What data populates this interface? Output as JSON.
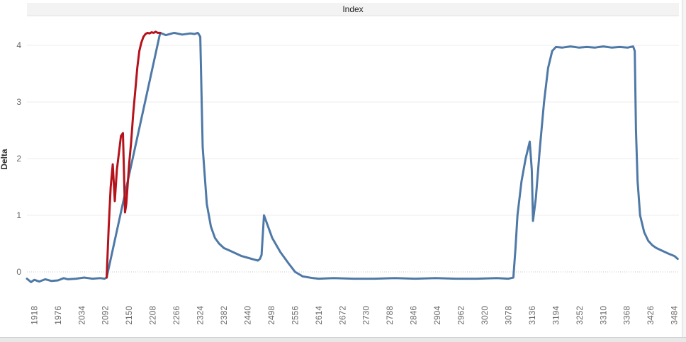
{
  "header": {
    "title": "Index"
  },
  "chart_data": {
    "type": "line",
    "title": "Index",
    "xlabel": "",
    "ylabel": "Delta",
    "xlim": [
      1900,
      3495
    ],
    "ylim": [
      -0.55,
      4.5
    ],
    "grid": true,
    "y_ticks": [
      0,
      1,
      2,
      3,
      4
    ],
    "x_ticks": [
      1918,
      1976,
      2034,
      2092,
      2150,
      2208,
      2266,
      2324,
      2382,
      2440,
      2498,
      2556,
      2614,
      2672,
      2730,
      2788,
      2846,
      2904,
      2962,
      3020,
      3078,
      3136,
      3194,
      3252,
      3310,
      3368,
      3426,
      3484
    ],
    "colors": {
      "primary": "#4e79a7",
      "highlight": "#b5121b",
      "grid": "#ececec",
      "zero_line": "#c8c8c8"
    },
    "series": [
      {
        "segment": "primary",
        "color": "#4e79a7",
        "x": [
          1900,
          1910,
          1918,
          1930,
          1945,
          1960,
          1976,
          1990,
          2000,
          2020,
          2040,
          2060,
          2080,
          2090,
          2095,
          2226,
          2240,
          2260,
          2280,
          2300,
          2310,
          2318,
          2320,
          2324,
          2330,
          2340,
          2350,
          2360,
          2370,
          2382,
          2395,
          2410,
          2425,
          2440,
          2455,
          2465,
          2470,
          2474,
          2480,
          2490,
          2500,
          2520,
          2540,
          2556,
          2575,
          2600,
          2614,
          2650,
          2700,
          2750,
          2800,
          2850,
          2900,
          2950,
          3000,
          3050,
          3078,
          3090,
          3095,
          3100,
          3110,
          3120,
          3130,
          3135,
          3138,
          3145,
          3155,
          3165,
          3175,
          3185,
          3194,
          3210,
          3230,
          3250,
          3270,
          3290,
          3310,
          3330,
          3350,
          3370,
          3383,
          3387,
          3390,
          3394,
          3400,
          3410,
          3420,
          3430,
          3440,
          3455,
          3470,
          3484,
          3492
        ],
        "y": [
          -0.12,
          -0.18,
          -0.14,
          -0.17,
          -0.13,
          -0.16,
          -0.15,
          -0.11,
          -0.13,
          -0.12,
          -0.1,
          -0.12,
          -0.11,
          -0.12,
          -0.1,
          4.22,
          4.18,
          4.22,
          4.19,
          4.21,
          4.2,
          4.22,
          4.2,
          4.15,
          2.2,
          1.2,
          0.8,
          0.6,
          0.5,
          0.42,
          0.38,
          0.33,
          0.28,
          0.25,
          0.22,
          0.2,
          0.23,
          0.3,
          1.0,
          0.8,
          0.6,
          0.35,
          0.15,
          0.0,
          -0.08,
          -0.11,
          -0.12,
          -0.11,
          -0.12,
          -0.12,
          -0.11,
          -0.12,
          -0.11,
          -0.12,
          -0.12,
          -0.11,
          -0.12,
          -0.1,
          0.4,
          1.0,
          1.6,
          2.0,
          2.3,
          1.8,
          0.9,
          1.3,
          2.2,
          3.0,
          3.6,
          3.9,
          3.97,
          3.96,
          3.98,
          3.96,
          3.97,
          3.96,
          3.98,
          3.96,
          3.97,
          3.96,
          3.98,
          3.9,
          2.5,
          1.6,
          1.0,
          0.7,
          0.55,
          0.47,
          0.42,
          0.37,
          0.32,
          0.28,
          0.23
        ]
      },
      {
        "segment": "highlight",
        "color": "#b5121b",
        "x": [
          2095,
          2100,
          2105,
          2110,
          2115,
          2120,
          2125,
          2130,
          2135,
          2140,
          2143,
          2147,
          2150,
          2155,
          2160,
          2165,
          2170,
          2175,
          2180,
          2185,
          2190,
          2195,
          2200,
          2205,
          2210,
          2215,
          2220,
          2226
        ],
        "y": [
          -0.1,
          0.8,
          1.5,
          1.9,
          1.25,
          1.8,
          2.1,
          2.4,
          2.45,
          1.05,
          1.2,
          1.6,
          1.9,
          2.3,
          2.8,
          3.2,
          3.6,
          3.9,
          4.05,
          4.15,
          4.2,
          4.22,
          4.21,
          4.23,
          4.22,
          4.24,
          4.22,
          4.22
        ]
      }
    ]
  }
}
